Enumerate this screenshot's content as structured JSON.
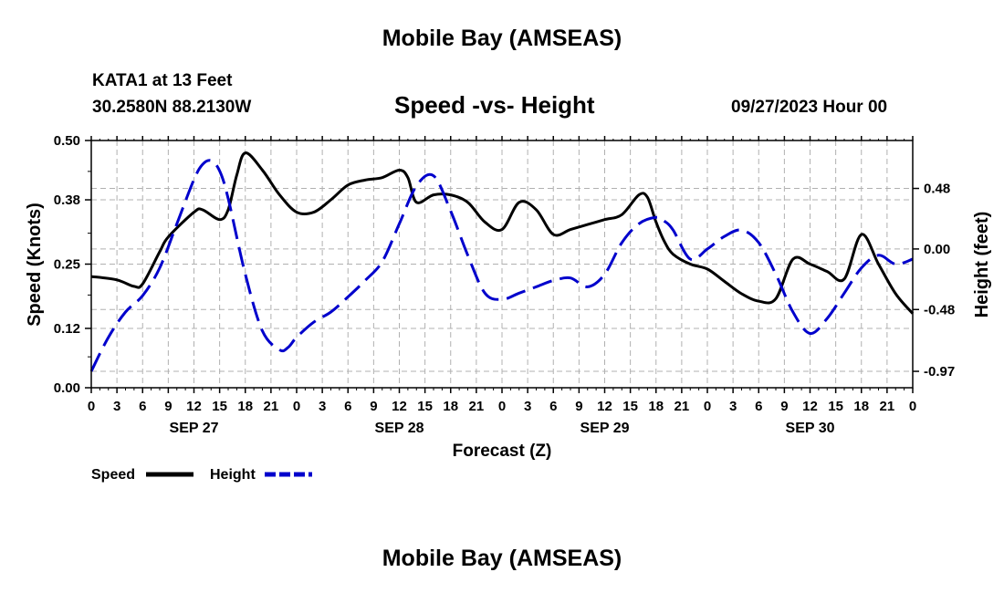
{
  "header": {
    "title": "Mobile Bay (AMSEAS)",
    "station": "KATA1 at 13 Feet",
    "coords": "30.2580N  88.2130W",
    "subtitle": "Speed -vs- Height",
    "datetime": "09/27/2023 Hour 00"
  },
  "footer": {
    "title": "Mobile Bay (AMSEAS)"
  },
  "colors": {
    "speed": "#000000",
    "height": "#0000cc",
    "grid": "#b0b0b0"
  },
  "chart_data": {
    "type": "line",
    "xlabel": "Forecast (Z)",
    "ylabel": "Speed (Knots)",
    "y2label": "Height (feet)",
    "x_unit": "forecast hour",
    "xlim": [
      0,
      96
    ],
    "x_tick_labels": [
      "0",
      "3",
      "6",
      "9",
      "12",
      "15",
      "18",
      "21",
      "0",
      "3",
      "6",
      "9",
      "12",
      "15",
      "18",
      "21",
      "0",
      "3",
      "6",
      "9",
      "12",
      "15",
      "18",
      "21",
      "0",
      "3",
      "6",
      "9",
      "12",
      "15",
      "18",
      "21",
      "0"
    ],
    "day_labels": [
      {
        "label": "SEP 27",
        "hour": 12
      },
      {
        "label": "SEP 28",
        "hour": 36
      },
      {
        "label": "SEP 29",
        "hour": 60
      },
      {
        "label": "SEP 30",
        "hour": 84
      }
    ],
    "ylim": [
      0,
      0.5
    ],
    "y_ticks": [
      "0.00",
      "0.12",
      "0.25",
      "0.38",
      "0.50"
    ],
    "y2lim": [
      -1.1,
      0.86
    ],
    "y2_ticks": [
      "-0.97",
      "-0.48",
      "0.00",
      "0.48"
    ],
    "series": [
      {
        "name": "Speed",
        "axis": "left",
        "style": "solid",
        "x": [
          0,
          3,
          5,
          6,
          8,
          9,
          12,
          13,
          15,
          16,
          17,
          18,
          20,
          22,
          24,
          26,
          28,
          30,
          32,
          34,
          36,
          37,
          38,
          40,
          42,
          44,
          46,
          48,
          50,
          52,
          54,
          56,
          58,
          60,
          62,
          64,
          65,
          66,
          67,
          68,
          70,
          72,
          74,
          76,
          78,
          80,
          82,
          84,
          86,
          88,
          90,
          92,
          94,
          96
        ],
        "y": [
          0.225,
          0.218,
          0.205,
          0.21,
          0.275,
          0.305,
          0.355,
          0.36,
          0.34,
          0.36,
          0.43,
          0.475,
          0.44,
          0.39,
          0.355,
          0.355,
          0.38,
          0.41,
          0.42,
          0.425,
          0.44,
          0.425,
          0.375,
          0.39,
          0.39,
          0.375,
          0.335,
          0.32,
          0.375,
          0.36,
          0.31,
          0.32,
          0.33,
          0.34,
          0.35,
          0.39,
          0.385,
          0.335,
          0.295,
          0.27,
          0.25,
          0.24,
          0.215,
          0.19,
          0.175,
          0.18,
          0.26,
          0.25,
          0.235,
          0.22,
          0.31,
          0.25,
          0.19,
          0.15
        ]
      },
      {
        "name": "Height",
        "axis": "right",
        "style": "dashed",
        "x": [
          0,
          2,
          4,
          6,
          8,
          10,
          12,
          13,
          14,
          15,
          16,
          18,
          20,
          22,
          23,
          24,
          26,
          28,
          30,
          32,
          34,
          36,
          38,
          40,
          42,
          44,
          46,
          48,
          50,
          52,
          54,
          56,
          58,
          60,
          62,
          64,
          66,
          67,
          68,
          70,
          72,
          74,
          76,
          78,
          80,
          82,
          84,
          86,
          88,
          90,
          92,
          94,
          96
        ],
        "y": [
          -0.97,
          -0.7,
          -0.5,
          -0.37,
          -0.15,
          0.2,
          0.55,
          0.67,
          0.7,
          0.62,
          0.4,
          -0.2,
          -0.65,
          -0.8,
          -0.78,
          -0.7,
          -0.58,
          -0.5,
          -0.38,
          -0.25,
          -0.1,
          0.2,
          0.5,
          0.58,
          0.3,
          -0.05,
          -0.35,
          -0.4,
          -0.35,
          -0.3,
          -0.25,
          -0.23,
          -0.3,
          -0.2,
          0.05,
          0.2,
          0.25,
          0.22,
          0.15,
          -0.08,
          0.0,
          0.1,
          0.15,
          0.05,
          -0.2,
          -0.5,
          -0.67,
          -0.55,
          -0.35,
          -0.15,
          -0.05,
          -0.12,
          -0.08
        ]
      }
    ],
    "legend": [
      {
        "label": "Speed",
        "color": "#000000",
        "style": "solid"
      },
      {
        "label": "Height",
        "color": "#0000cc",
        "style": "dashed"
      }
    ],
    "legend_position": "bottom-left",
    "grid": true
  }
}
